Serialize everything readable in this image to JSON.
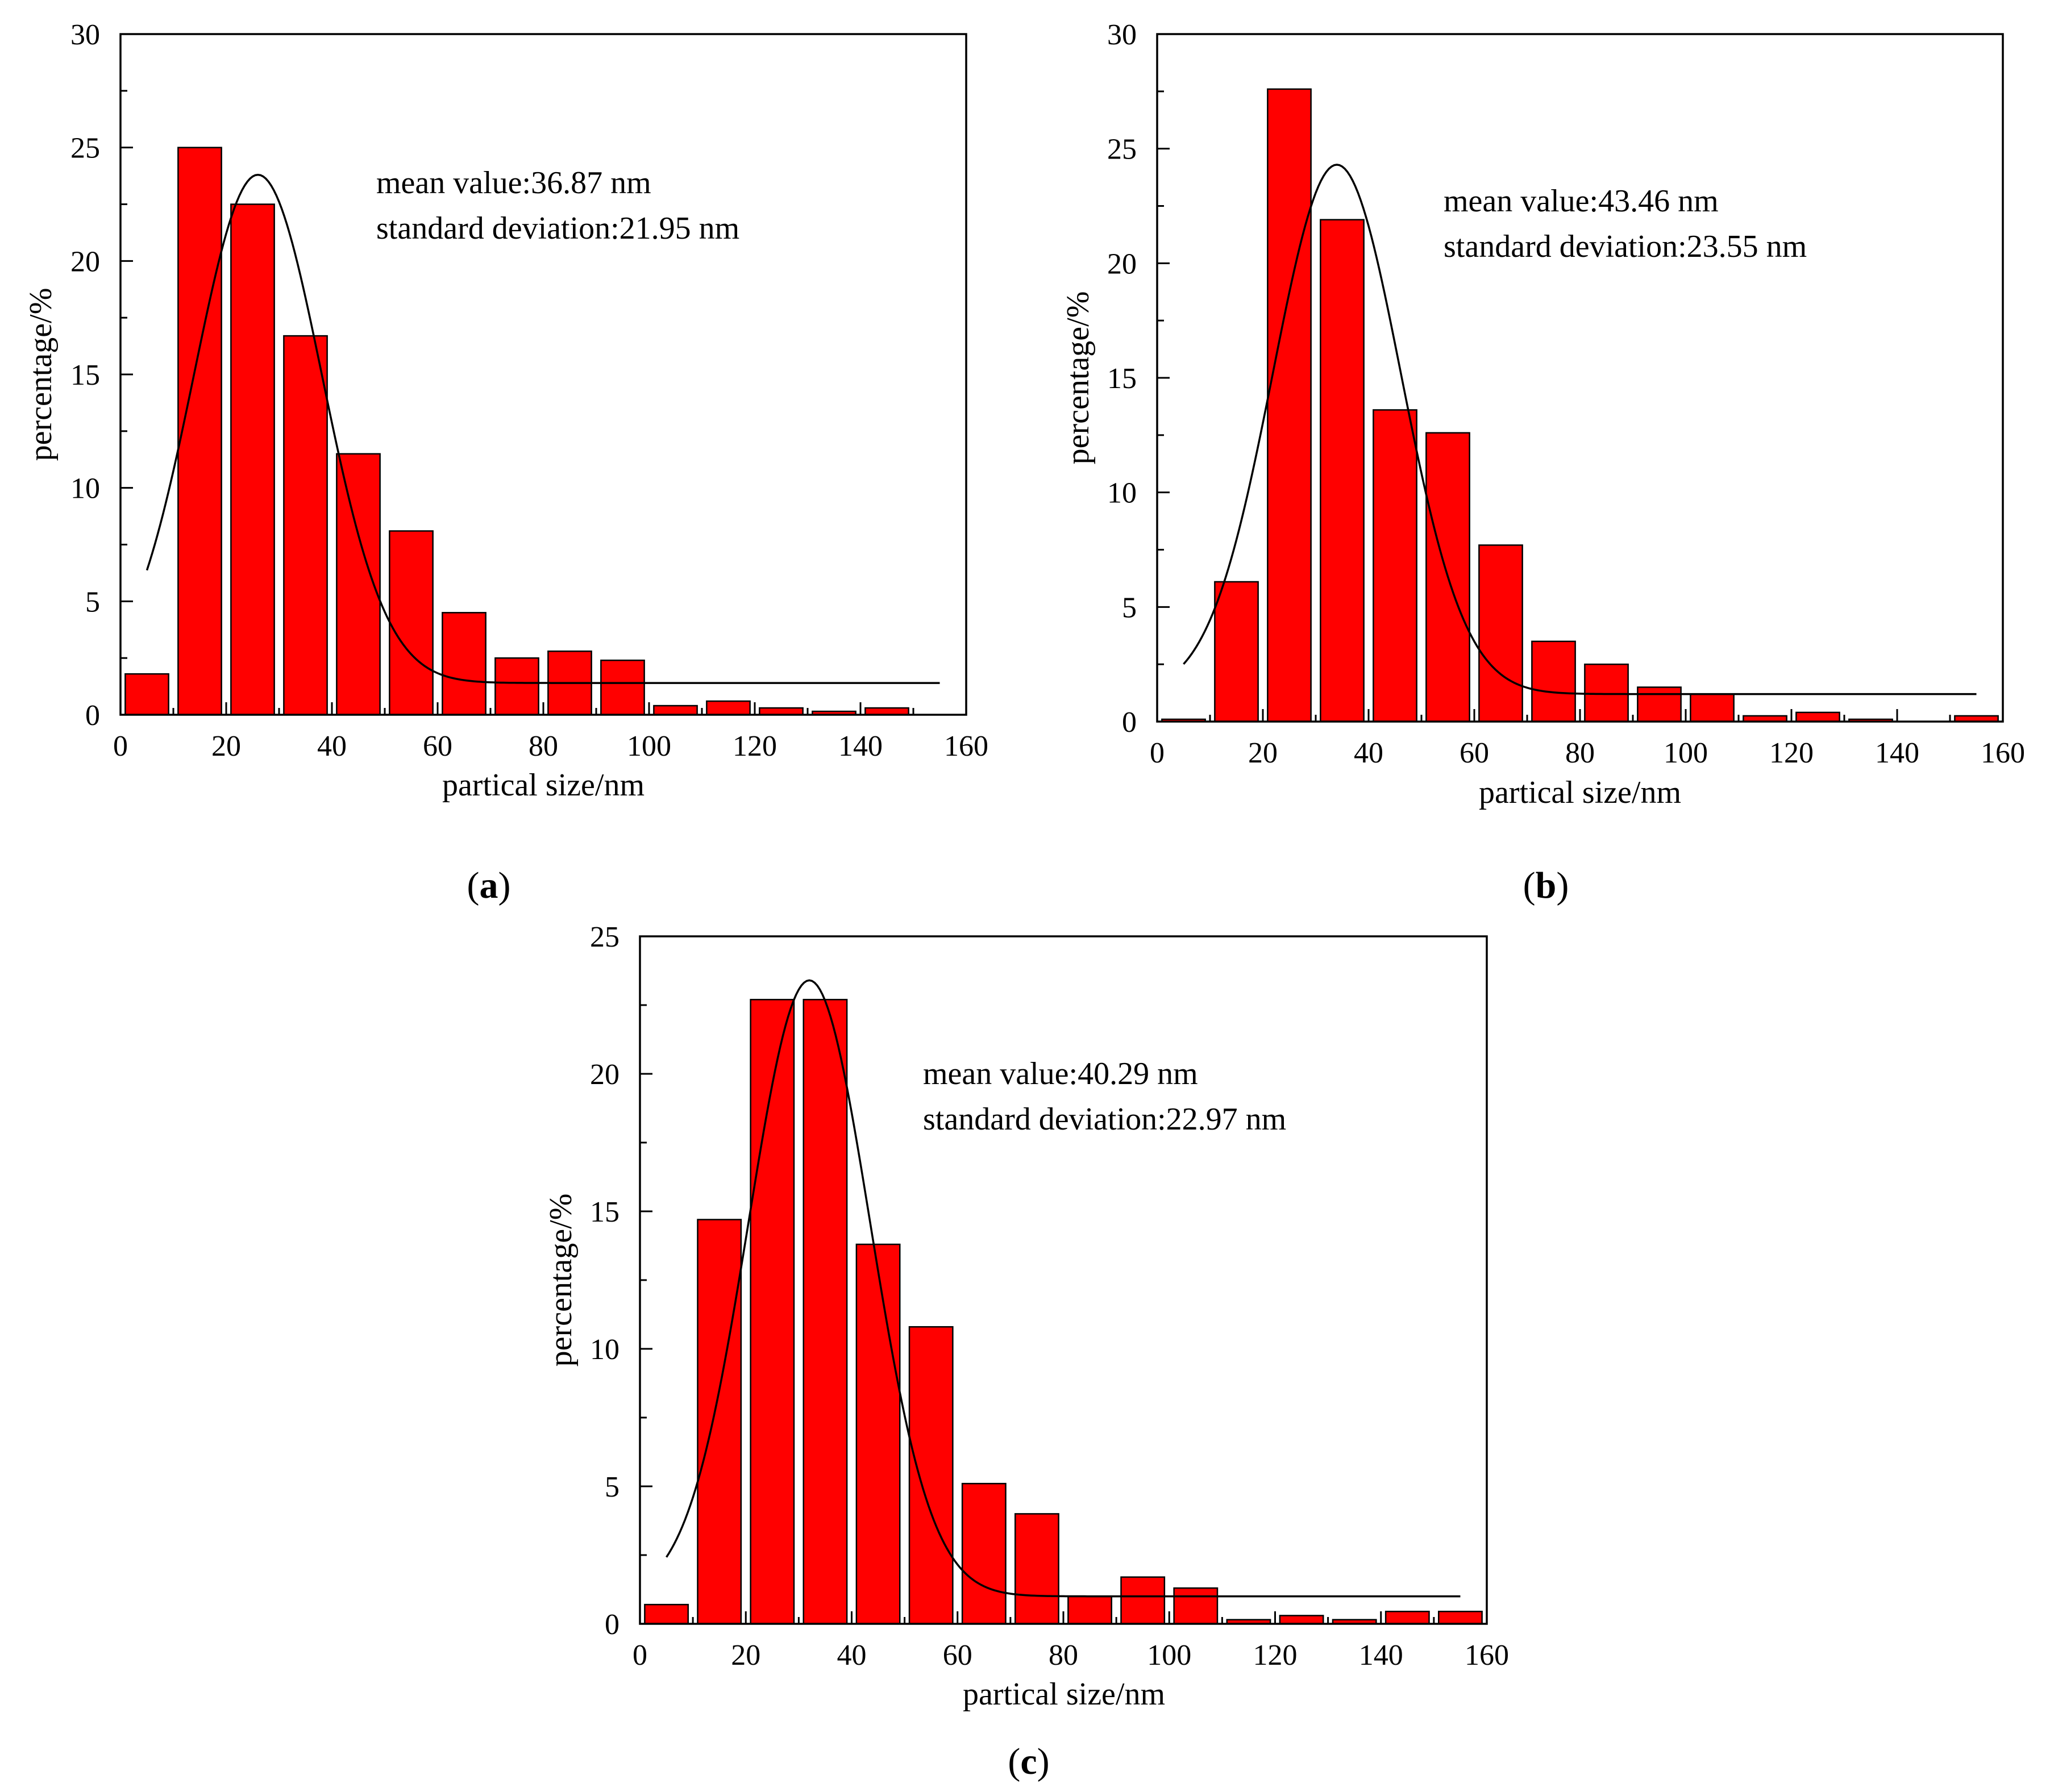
{
  "figure": {
    "bar_color": "#ff0000",
    "bar_stroke": "#000000",
    "curve_color": "#000000"
  },
  "chart_data": [
    {
      "id": "a",
      "type": "bar",
      "panel_label": "a",
      "xlabel": "partical size/nm",
      "ylabel": "percentage/%",
      "xlim": [
        0,
        160
      ],
      "ylim": [
        0,
        30
      ],
      "xticks": [
        0,
        20,
        40,
        60,
        80,
        100,
        120,
        140,
        160
      ],
      "yticks": [
        0,
        5,
        10,
        15,
        20,
        25,
        30
      ],
      "bin_width": 10,
      "bin_centers": [
        5,
        15,
        25,
        35,
        45,
        55,
        65,
        75,
        85,
        95,
        105,
        115,
        125,
        135,
        145
      ],
      "values": [
        1.8,
        25.0,
        22.5,
        16.7,
        11.5,
        8.1,
        4.5,
        2.5,
        2.8,
        2.4,
        0.4,
        0.6,
        0.3,
        0.15,
        0.3
      ],
      "fit": {
        "baseline": 1.4,
        "amplitude": 22.4,
        "center": 26,
        "sigma": 12.1,
        "x_range": [
          5,
          155
        ]
      },
      "annotations": [
        "mean value:36.87 nm",
        "standard deviation:21.95 nm"
      ]
    },
    {
      "id": "b",
      "type": "bar",
      "panel_label": "b",
      "xlabel": "partical size/nm",
      "ylabel": "percentage/%",
      "xlim": [
        0,
        160
      ],
      "ylim": [
        0,
        30
      ],
      "xticks": [
        0,
        20,
        40,
        60,
        80,
        100,
        120,
        140,
        160
      ],
      "yticks": [
        0,
        5,
        10,
        15,
        20,
        25,
        30
      ],
      "bin_width": 10,
      "bin_centers": [
        5,
        15,
        25,
        35,
        45,
        55,
        65,
        75,
        85,
        95,
        105,
        115,
        125,
        135,
        145,
        155
      ],
      "values": [
        0.1,
        6.1,
        27.6,
        21.9,
        13.6,
        12.6,
        7.7,
        3.5,
        2.5,
        1.5,
        1.2,
        0.25,
        0.4,
        0.1,
        0.0,
        0.25
      ],
      "fit": {
        "baseline": 1.2,
        "amplitude": 23.1,
        "center": 34,
        "sigma": 12.1,
        "x_range": [
          5,
          155
        ]
      },
      "annotations": [
        "mean value:43.46 nm",
        "standard deviation:23.55 nm"
      ]
    },
    {
      "id": "c",
      "type": "bar",
      "panel_label": "c",
      "xlabel": "partical size/nm",
      "ylabel": "percentage/%",
      "xlim": [
        0,
        160
      ],
      "ylim": [
        0,
        25
      ],
      "xticks": [
        0,
        20,
        40,
        60,
        80,
        100,
        120,
        140,
        160
      ],
      "yticks": [
        0,
        5,
        10,
        15,
        20,
        25
      ],
      "bin_width": 10,
      "bin_centers": [
        5,
        15,
        25,
        35,
        45,
        55,
        65,
        75,
        85,
        95,
        105,
        115,
        125,
        135,
        145,
        155
      ],
      "values": [
        0.7,
        14.7,
        22.7,
        22.7,
        13.8,
        10.8,
        5.1,
        4.0,
        1.0,
        1.7,
        1.3,
        0.15,
        0.3,
        0.15,
        0.45,
        0.45
      ],
      "fit": {
        "baseline": 1.0,
        "amplitude": 22.4,
        "center": 32,
        "sigma": 11.5,
        "x_range": [
          5,
          155
        ]
      },
      "annotations": [
        "mean value:40.29 nm",
        "standard deviation:22.97 nm"
      ]
    }
  ]
}
